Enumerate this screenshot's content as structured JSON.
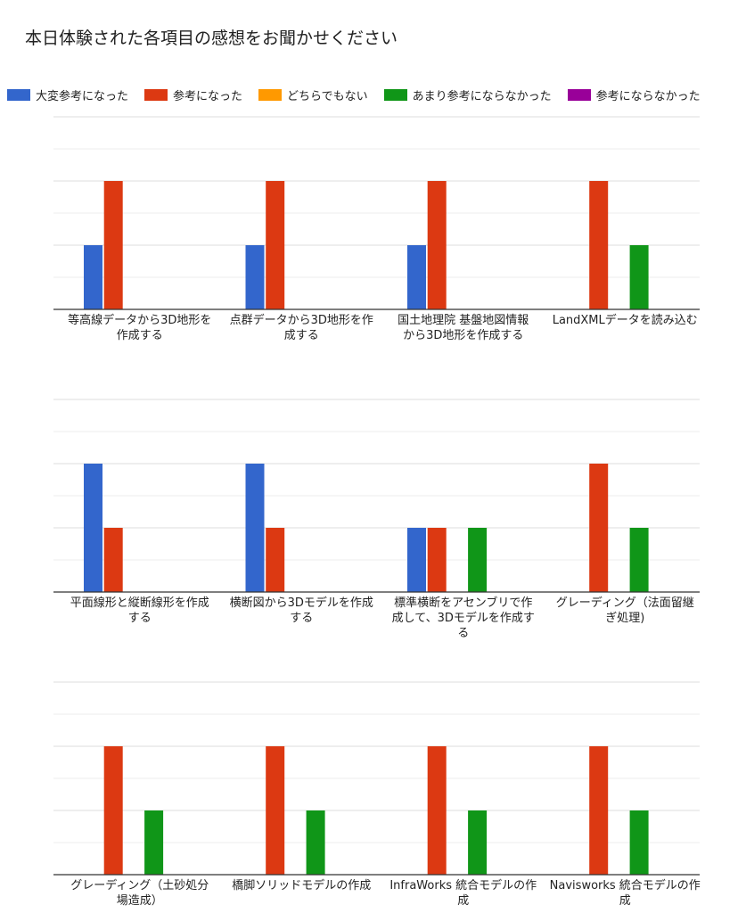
{
  "title": "本日体験された各項目の感想をお聞かせください",
  "colors": {
    "grid": "#dddddd",
    "axis": "#333333",
    "text": "#222222"
  },
  "chart_data": {
    "type": "bar",
    "series": [
      {
        "name": "大変参考になった",
        "color": "#3366cc",
        "values": [
          2,
          2,
          2,
          0,
          4,
          4,
          2,
          0,
          0,
          0,
          0,
          0
        ]
      },
      {
        "name": "参考になった",
        "color": "#dc3912",
        "values": [
          4,
          4,
          4,
          4,
          2,
          2,
          2,
          4,
          4,
          4,
          4,
          4
        ]
      },
      {
        "name": "どちらでもない",
        "color": "#ff9900",
        "values": [
          0,
          0,
          0,
          0,
          0,
          0,
          0,
          0,
          0,
          0,
          0,
          0
        ]
      },
      {
        "name": "あまり参考にならなかった",
        "color": "#109618",
        "values": [
          0,
          0,
          0,
          2,
          0,
          0,
          2,
          2,
          2,
          2,
          2,
          2
        ]
      },
      {
        "name": "参考にならなかった",
        "color": "#990099",
        "values": [
          0,
          0,
          0,
          0,
          0,
          0,
          0,
          0,
          0,
          0,
          0,
          0
        ]
      }
    ],
    "categories": [
      [
        "等高線データから3D地形を",
        "作成する"
      ],
      [
        "点群データから3D地形を作",
        "成する"
      ],
      [
        "国土地理院 基盤地図情報",
        "から3D地形を作成する"
      ],
      [
        "LandXMLデータを読み込む"
      ],
      [
        "平面線形と縦断線形を作成",
        "する"
      ],
      [
        "横断図から3Dモデルを作成",
        "する"
      ],
      [
        "標準横断をアセンブリで作",
        "成して、3Dモデルを作成す",
        "る"
      ],
      [
        "グレーディング（法面留継",
        "ぎ処理)"
      ],
      [
        "グレーディング（土砂処分",
        "場造成）"
      ],
      [
        "橋脚ソリッドモデルの作成"
      ],
      [
        "InfraWorks 統合モデルの作",
        "成"
      ],
      [
        "Navisworks 統合モデルの作",
        "成"
      ]
    ],
    "ylim": [
      0,
      6
    ],
    "legend_position": "top",
    "panels": 3,
    "categories_per_panel": 4,
    "grid": true
  }
}
